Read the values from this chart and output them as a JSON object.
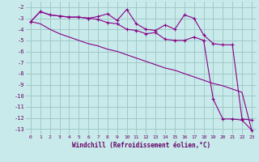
{
  "xlabel": "Windchill (Refroidissement éolien,°C)",
  "background_color": "#c8eaea",
  "grid_color": "#a0c8c8",
  "line_color": "#880088",
  "x_vals": [
    0,
    1,
    2,
    3,
    4,
    5,
    6,
    7,
    8,
    9,
    10,
    11,
    12,
    13,
    14,
    15,
    16,
    17,
    18,
    19,
    20,
    21,
    22,
    23
  ],
  "line1": [
    -3.3,
    -2.4,
    -2.7,
    -2.8,
    -2.9,
    -2.9,
    -3.0,
    -2.85,
    -2.6,
    -3.2,
    -2.2,
    -3.5,
    -4.0,
    -4.1,
    -3.6,
    -4.0,
    -2.7,
    -3.0,
    -4.5,
    -5.3,
    -5.4,
    -5.4,
    -12.1,
    -12.2
  ],
  "line2": [
    -3.3,
    -2.4,
    -2.7,
    -2.8,
    -2.9,
    -2.9,
    -3.0,
    -3.1,
    -3.4,
    -3.5,
    -4.0,
    -4.1,
    -4.4,
    -4.3,
    -4.9,
    -5.0,
    -5.0,
    -4.7,
    -5.0,
    -10.3,
    -12.1,
    -12.1,
    -12.2,
    -13.1
  ],
  "line3": [
    -3.3,
    -3.5,
    -4.0,
    -4.4,
    -4.7,
    -5.0,
    -5.3,
    -5.5,
    -5.8,
    -6.0,
    -6.3,
    -6.6,
    -6.9,
    -7.2,
    -7.5,
    -7.7,
    -8.0,
    -8.3,
    -8.6,
    -8.9,
    -9.1,
    -9.4,
    -9.7,
    -13.1
  ],
  "ylim": [
    -13.5,
    -1.5
  ],
  "xlim": [
    -0.5,
    23.5
  ],
  "yticks": [
    -2,
    -3,
    -4,
    -5,
    -6,
    -7,
    -8,
    -9,
    -10,
    -11,
    -12,
    -13
  ],
  "xticks": [
    0,
    1,
    2,
    3,
    4,
    5,
    6,
    7,
    8,
    9,
    10,
    11,
    12,
    13,
    14,
    15,
    16,
    17,
    18,
    19,
    20,
    21,
    22,
    23
  ]
}
